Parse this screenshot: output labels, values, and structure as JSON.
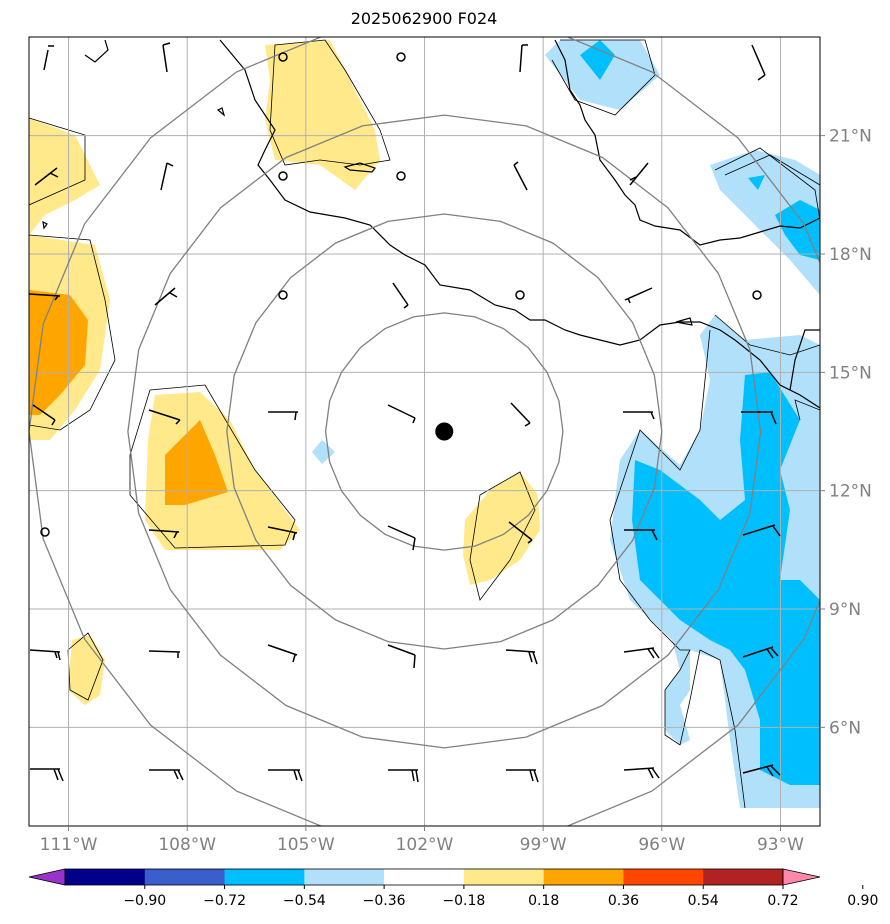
{
  "title": "2025062900 F024",
  "map": {
    "lon_range": [
      -112,
      -92
    ],
    "lat_range": [
      3.5,
      23.5
    ],
    "lon_ticks": [
      {
        "value": -111,
        "label": "111°W"
      },
      {
        "value": -108,
        "label": "108°W"
      },
      {
        "value": -105,
        "label": "105°W"
      },
      {
        "value": -102,
        "label": "102°W"
      },
      {
        "value": -99,
        "label": "99°W"
      },
      {
        "value": -96,
        "label": "96°W"
      },
      {
        "value": -93,
        "label": "93°W"
      }
    ],
    "lat_ticks": [
      {
        "value": 21,
        "label": "21°N"
      },
      {
        "value": 18,
        "label": "18°N"
      },
      {
        "value": 15,
        "label": "15°N"
      },
      {
        "value": 12,
        "label": "12°N"
      },
      {
        "value": 9,
        "label": "9°N"
      },
      {
        "value": 6,
        "label": "6°N"
      }
    ],
    "gridlines": true,
    "storm_center": {
      "lon": -101.5,
      "lat": 13.5
    },
    "range_rings_deg": [
      3,
      5.5,
      8,
      10.5
    ]
  },
  "colorbar": {
    "labels": [
      "−0.90",
      "−0.72",
      "−0.54",
      "−0.36",
      "−0.18",
      "0.18",
      "0.36",
      "0.54",
      "0.72",
      "0.90"
    ],
    "colors": [
      "#9932cc",
      "#00008b",
      "#3a5fcd",
      "#00bfff",
      "#b0e0fa",
      "#ffffff",
      "#ffe98a",
      "#ffa500",
      "#ff4500",
      "#b22222",
      "#ff88aa"
    ],
    "extend": "both"
  },
  "colors": {
    "grid": "#b0b0b0",
    "ring": "#808080",
    "coast": "#000000",
    "barb": "#000000"
  }
}
